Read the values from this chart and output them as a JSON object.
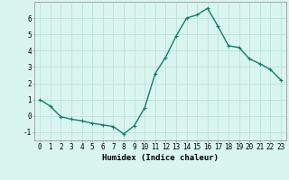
{
  "x": [
    0,
    1,
    2,
    3,
    4,
    5,
    6,
    7,
    8,
    9,
    10,
    11,
    12,
    13,
    14,
    15,
    16,
    17,
    18,
    19,
    20,
    21,
    22,
    23
  ],
  "y": [
    1.0,
    0.6,
    -0.05,
    -0.2,
    -0.3,
    -0.45,
    -0.55,
    -0.65,
    -1.1,
    -0.6,
    0.5,
    2.6,
    3.6,
    4.9,
    6.0,
    6.2,
    6.6,
    5.5,
    4.3,
    4.2,
    3.5,
    3.2,
    2.85,
    2.2
  ],
  "line_color": "#1a7a6a",
  "marker": "+",
  "marker_size": 3,
  "background_color": "#d8f5f0",
  "grid_color": "#c0e0da",
  "xlabel": "Humidex (Indice chaleur)",
  "xlim": [
    -0.5,
    23.5
  ],
  "ylim": [
    -1.5,
    7.0
  ],
  "yticks": [
    -1,
    0,
    1,
    2,
    3,
    4,
    5,
    6
  ],
  "xticks": [
    0,
    1,
    2,
    3,
    4,
    5,
    6,
    7,
    8,
    9,
    10,
    11,
    12,
    13,
    14,
    15,
    16,
    17,
    18,
    19,
    20,
    21,
    22,
    23
  ],
  "xtick_labels": [
    "0",
    "1",
    "2",
    "3",
    "4",
    "5",
    "6",
    "7",
    "8",
    "9",
    "10",
    "11",
    "12",
    "13",
    "14",
    "15",
    "16",
    "17",
    "18",
    "19",
    "20",
    "21",
    "22",
    "23"
  ],
  "tick_fontsize": 5.5,
  "xlabel_fontsize": 6.5,
  "linewidth": 1.0,
  "marker_lw": 0.8
}
